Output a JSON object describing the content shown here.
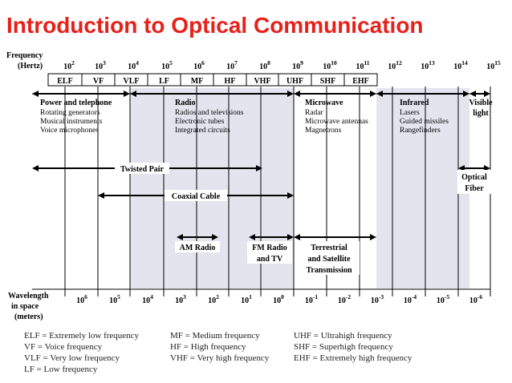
{
  "title": "Introduction to Optical Communication",
  "frequency_axis": {
    "label_line1": "Frequency",
    "label_line2": "(Hertz)",
    "exponents": [
      "2",
      "3",
      "4",
      "5",
      "6",
      "7",
      "8",
      "9",
      "10",
      "11",
      "12",
      "13",
      "14",
      "15"
    ],
    "base": "10"
  },
  "bands": [
    "ELF",
    "VF",
    "VLF",
    "LF",
    "MF",
    "HF",
    "VHF",
    "UHF",
    "SHF",
    "EHF"
  ],
  "categories": {
    "power": {
      "heading": "Power and telephone",
      "items": [
        "Rotating generators",
        "Musical instruments",
        "Voice microphones"
      ]
    },
    "radio": {
      "heading": "Radio",
      "items": [
        "Radios and televisions",
        "Electronic tubes",
        "Integrated circuits"
      ]
    },
    "microwave": {
      "heading": "Microwave",
      "items": [
        "Radar",
        "Microwave antennas",
        "Magnetrons"
      ]
    },
    "infrared": {
      "heading": "Infrared",
      "items": [
        "Lasers",
        "Guided missiles",
        "Rangefinders"
      ]
    },
    "visible": {
      "line1": "Visible",
      "line2": "light"
    }
  },
  "media": {
    "twisted_pair": "Twisted Pair",
    "coaxial": "Coaxial Cable",
    "optical_line1": "Optical",
    "optical_line2": "Fiber",
    "am_radio": "AM Radio",
    "fm_line1": "FM Radio",
    "fm_line2": "and TV",
    "terr_line1": "Terrestrial",
    "terr_line2": "and Satellite",
    "terr_line3": "Transmission"
  },
  "wavelength_axis": {
    "label_line1": "Wavelength",
    "label_line2": "in space",
    "label_line3": "(meters)",
    "exponents": [
      "6",
      "5",
      "4",
      "3",
      "2",
      "1",
      "0",
      "-1",
      "-2",
      "-3",
      "-4",
      "-5",
      "-6"
    ],
    "base": "10"
  },
  "legend": {
    "col1": [
      "ELF = Extremely low frequency",
      "VF = Voice frequency",
      "VLF = Very low frequency",
      "LF = Low frequency"
    ],
    "col2": [
      "MF = Medium frequency",
      "HF = High frequency",
      "VHF = Very high frequency"
    ],
    "col3": [
      "UHF = Ultrahigh frequency",
      "SHF = Superhigh frequency",
      "EHF = Extremely high frequency"
    ]
  },
  "colors": {
    "title": "#e8201a",
    "shade": "#e4e4ee",
    "line": "#000000"
  }
}
